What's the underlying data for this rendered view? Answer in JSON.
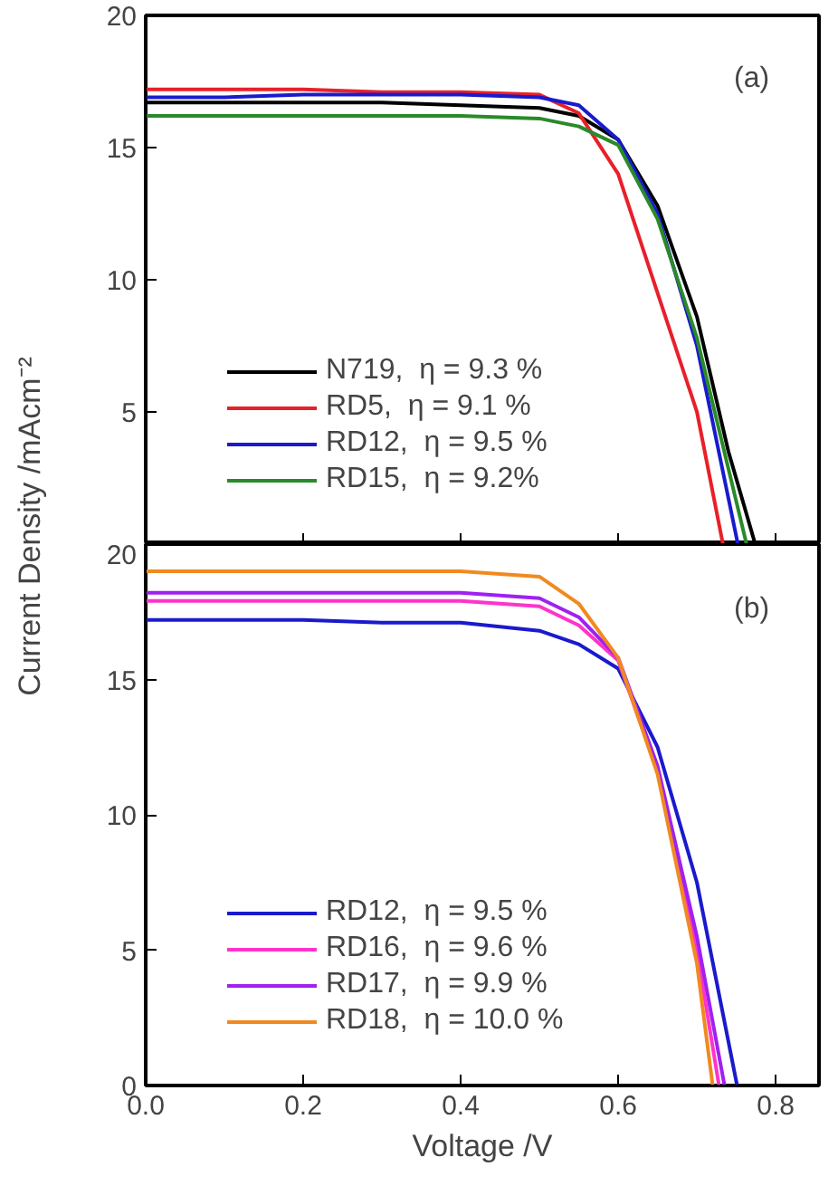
{
  "chart_data": [
    {
      "type": "line",
      "ylabel": "Current Density /mAcm⁻²",
      "xlim": [
        0,
        0.855
      ],
      "ylim": [
        0,
        20
      ],
      "xticks": [
        0.2,
        0.4,
        0.6,
        0.8
      ],
      "yticks": [
        5,
        10,
        15,
        20
      ],
      "tick_labels": "y",
      "grid": false,
      "legend": "bottom left",
      "annotations": [
        "(a)"
      ],
      "series": [
        {
          "name": "N719,  η = 9.3 %",
          "color": "#000000",
          "x": [
            0,
            0.1,
            0.2,
            0.3,
            0.4,
            0.5,
            0.55,
            0.6,
            0.65,
            0.7,
            0.74,
            0.774
          ],
          "values": [
            16.7,
            16.7,
            16.7,
            16.7,
            16.6,
            16.5,
            16.2,
            15.3,
            12.8,
            8.6,
            3.5,
            0
          ]
        },
        {
          "name": "RD5,  η = 9.1 %",
          "color": "#e8202a",
          "x": [
            0,
            0.1,
            0.2,
            0.3,
            0.4,
            0.5,
            0.55,
            0.6,
            0.65,
            0.7,
            0.733
          ],
          "values": [
            17.2,
            17.2,
            17.2,
            17.1,
            17.1,
            17.0,
            16.3,
            14.0,
            9.5,
            5.0,
            0
          ]
        },
        {
          "name": "RD12,  η = 9.5 %",
          "color": "#1a1acc",
          "x": [
            0,
            0.1,
            0.2,
            0.3,
            0.4,
            0.5,
            0.55,
            0.6,
            0.65,
            0.7,
            0.752
          ],
          "values": [
            16.9,
            16.9,
            17.0,
            17.0,
            17.0,
            16.9,
            16.6,
            15.3,
            12.5,
            7.5,
            0
          ]
        },
        {
          "name": "RD15,  η = 9.2%",
          "color": "#2a8a2a",
          "x": [
            0,
            0.1,
            0.2,
            0.3,
            0.4,
            0.5,
            0.55,
            0.6,
            0.65,
            0.7,
            0.763
          ],
          "values": [
            16.2,
            16.2,
            16.2,
            16.2,
            16.2,
            16.1,
            15.8,
            15.1,
            12.3,
            7.8,
            0
          ]
        }
      ]
    },
    {
      "type": "line",
      "xlabel": "Voltage /V",
      "xlim": [
        0,
        0.855
      ],
      "ylim": [
        0,
        20
      ],
      "xticks": [
        {
          "value": 0,
          "label": "0.0"
        },
        0.2,
        0.4,
        0.6,
        0.8
      ],
      "yticks": [
        0,
        5,
        10,
        15,
        20
      ],
      "grid": false,
      "legend": "bottom left",
      "annotations": [
        "(b)"
      ],
      "series": [
        {
          "name": "RD12,  η = 9.5 %",
          "color": "#1a1acc",
          "x": [
            0,
            0.1,
            0.2,
            0.3,
            0.4,
            0.5,
            0.55,
            0.6,
            0.65,
            0.7,
            0.751
          ],
          "values": [
            17.2,
            17.2,
            17.2,
            17.1,
            17.1,
            16.8,
            16.3,
            15.4,
            12.5,
            7.5,
            0
          ]
        },
        {
          "name": "RD16,  η = 9.6 %",
          "color": "#ff33cc",
          "x": [
            0,
            0.1,
            0.2,
            0.3,
            0.4,
            0.5,
            0.55,
            0.6,
            0.65,
            0.7,
            0.728
          ],
          "values": [
            17.9,
            17.9,
            17.9,
            17.9,
            17.9,
            17.7,
            17.0,
            15.7,
            11.6,
            5.0,
            0
          ]
        },
        {
          "name": "RD17,  η = 9.9 %",
          "color": "#a020f0",
          "x": [
            0,
            0.1,
            0.2,
            0.3,
            0.4,
            0.5,
            0.55,
            0.6,
            0.65,
            0.7,
            0.735
          ],
          "values": [
            18.2,
            18.2,
            18.2,
            18.2,
            18.2,
            18.0,
            17.3,
            15.8,
            11.8,
            5.5,
            0
          ]
        },
        {
          "name": "RD18,  η = 10.0 %",
          "color": "#f08a20",
          "x": [
            0,
            0.1,
            0.2,
            0.3,
            0.4,
            0.5,
            0.55,
            0.6,
            0.65,
            0.7,
            0.72
          ],
          "values": [
            19.0,
            19.0,
            19.0,
            19.0,
            19.0,
            18.8,
            17.8,
            15.8,
            11.5,
            4.5,
            0
          ]
        }
      ]
    }
  ]
}
